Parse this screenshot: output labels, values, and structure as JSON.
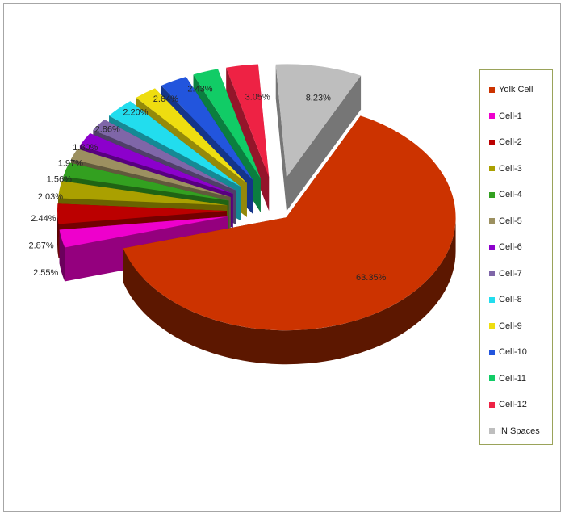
{
  "chart_data": {
    "type": "pie",
    "title": "",
    "legend_position": "right",
    "series": [
      {
        "categories": [
          "Yolk Cell",
          "Cell-1",
          "Cell-2",
          "Cell-3",
          "Cell-4",
          "Cell-5",
          "Cell-6",
          "Cell-7",
          "Cell-8",
          "Cell-9",
          "Cell-10",
          "Cell-11",
          "Cell-12",
          "IN Spaces"
        ],
        "values": [
          63.35,
          2.55,
          2.87,
          2.44,
          2.03,
          1.56,
          1.97,
          1.8,
          2.86,
          2.2,
          2.64,
          2.43,
          3.05,
          8.23
        ],
        "labels": [
          "63.35%",
          "2.55%",
          "2.87%",
          "2.44%",
          "2.03%",
          "1.56%",
          "1.97%",
          "1.80%",
          "2.86%",
          "2.20%",
          "2.64%",
          "2.43%",
          "3.05%",
          "8.23%"
        ],
        "colors": [
          "#cc3300",
          "#ee00cc",
          "#bb0000",
          "#aaa000",
          "#33a020",
          "#9c9060",
          "#8c00cc",
          "#7f66a8",
          "#22ddee",
          "#eedd10",
          "#2255dd",
          "#11cc66",
          "#ee2244",
          "#bebebe"
        ]
      }
    ]
  }
}
